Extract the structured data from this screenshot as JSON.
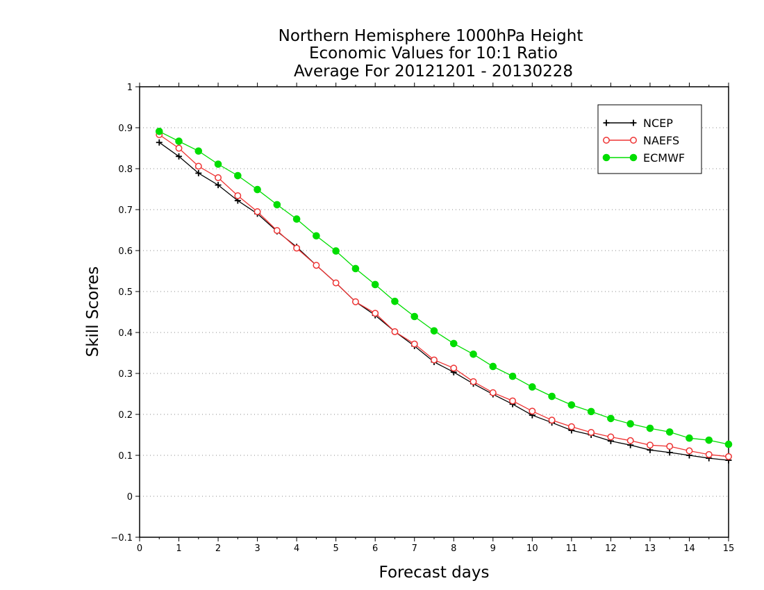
{
  "chart_data": {
    "type": "line",
    "title": [
      "Northern Hemisphere 1000hPa Height",
      "Economic Values for 10:1 Ratio",
      "Average For 20121201 - 20130228"
    ],
    "xlabel": "Forecast days",
    "ylabel": "Skill Scores",
    "xlim": [
      0,
      15
    ],
    "ylim": [
      -0.1,
      1
    ],
    "xticks": [
      "0",
      "1",
      "2",
      "3",
      "4",
      "5",
      "6",
      "7",
      "8",
      "9",
      "10",
      "11",
      "12",
      "13",
      "14",
      "15"
    ],
    "yticks": [
      "−0.1",
      "0",
      "0.1",
      "0.2",
      "0.3",
      "0.4",
      "0.5",
      "0.6",
      "0.7",
      "0.8",
      "0.9",
      "1"
    ],
    "grid": "dotted horizontal",
    "legend_position": "top-right",
    "x": [
      0.5,
      1,
      1.5,
      2,
      2.5,
      3,
      3.5,
      4,
      4.5,
      5,
      5.5,
      6,
      6.5,
      7,
      7.5,
      8,
      8.5,
      9,
      9.5,
      10,
      10.5,
      11,
      11.5,
      12,
      12.5,
      13,
      13.5,
      14,
      14.5,
      15
    ],
    "series": [
      {
        "name": "NCEP",
        "color": "#000000",
        "marker": "plus",
        "values": [
          0.864,
          0.83,
          0.789,
          0.76,
          0.722,
          0.69,
          0.647,
          0.609,
          0.564,
          0.521,
          0.475,
          0.442,
          0.402,
          0.367,
          0.328,
          0.303,
          0.275,
          0.249,
          0.225,
          0.198,
          0.18,
          0.161,
          0.15,
          0.135,
          0.125,
          0.113,
          0.107,
          0.1,
          0.093,
          0.088
        ]
      },
      {
        "name": "NAEFS",
        "color": "#ee3333",
        "marker": "open-circle",
        "values": [
          0.883,
          0.85,
          0.806,
          0.778,
          0.734,
          0.695,
          0.649,
          0.606,
          0.564,
          0.521,
          0.475,
          0.447,
          0.402,
          0.372,
          0.333,
          0.313,
          0.28,
          0.253,
          0.233,
          0.208,
          0.186,
          0.17,
          0.156,
          0.145,
          0.136,
          0.125,
          0.122,
          0.111,
          0.102,
          0.097
        ]
      },
      {
        "name": "ECMWF",
        "color": "#00dd00",
        "marker": "filled-circle",
        "values": [
          0.891,
          0.867,
          0.843,
          0.811,
          0.783,
          0.749,
          0.712,
          0.677,
          0.636,
          0.599,
          0.556,
          0.517,
          0.476,
          0.439,
          0.404,
          0.373,
          0.347,
          0.317,
          0.293,
          0.267,
          0.244,
          0.223,
          0.207,
          0.19,
          0.177,
          0.166,
          0.157,
          0.142,
          0.137,
          0.127
        ]
      }
    ]
  }
}
